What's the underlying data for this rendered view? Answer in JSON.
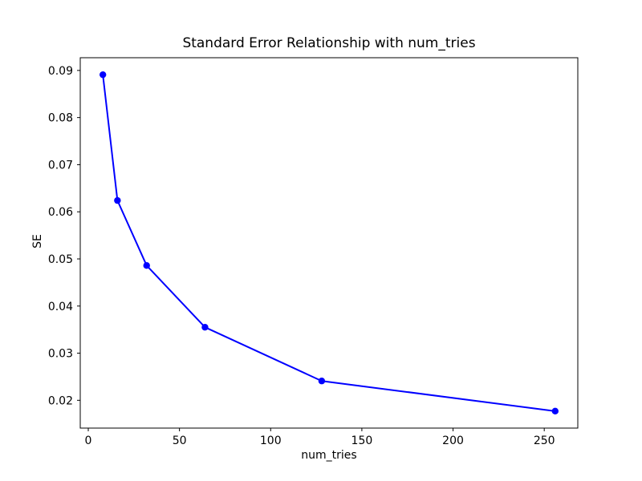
{
  "figure": {
    "background": "#ffffff"
  },
  "chart_data": {
    "type": "line",
    "title": "Standard Error Relationship with num_tries",
    "xlabel": "num_tries",
    "ylabel": "SE",
    "x": [
      8,
      16,
      32,
      64,
      128,
      256
    ],
    "y": [
      0.0891,
      0.0624,
      0.0486,
      0.0355,
      0.0241,
      0.0177
    ],
    "series": [
      {
        "name": "SE",
        "x": [
          8,
          16,
          32,
          64,
          128,
          256
        ],
        "values": [
          0.0891,
          0.0624,
          0.0486,
          0.0355,
          0.0241,
          0.0177
        ]
      }
    ],
    "xticks": [
      0,
      50,
      100,
      150,
      200,
      250
    ],
    "yticks": [
      0.02,
      0.03,
      0.04,
      0.05,
      0.06,
      0.07,
      0.08,
      0.09
    ],
    "xlim": [
      -4.4,
      268.4
    ],
    "ylim": [
      0.0141,
      0.0927
    ],
    "grid": false,
    "legend": null,
    "line_color": "#0000ff",
    "marker": "o",
    "axis_color": "#000000",
    "plot_bg": "#ffffff"
  }
}
